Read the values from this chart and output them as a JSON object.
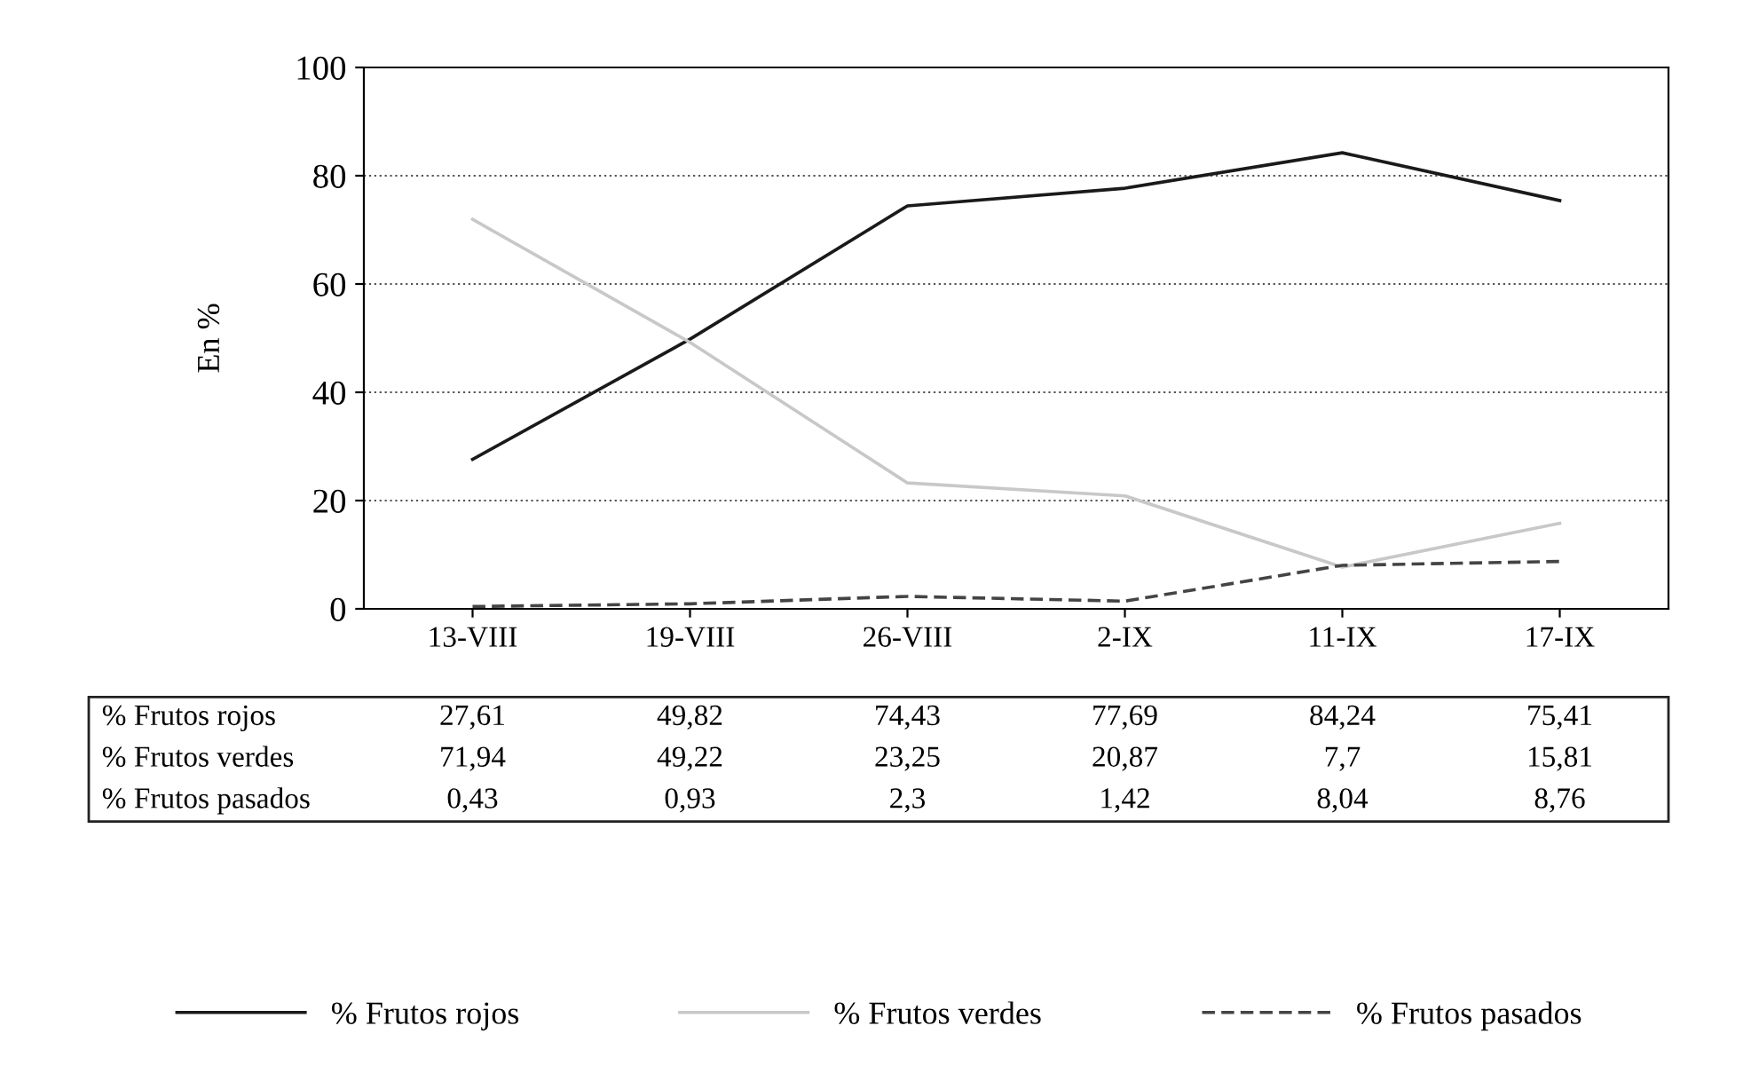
{
  "chart_data": {
    "type": "line",
    "ylabel": "En %",
    "categories": [
      "13-VIII",
      "19-VIII",
      "26-VIII",
      "2-IX",
      "11-IX",
      "17-IX"
    ],
    "series": [
      {
        "name": "% Frutos rojos",
        "color": "#1a1a1a",
        "line_style": "solid",
        "values": [
          27.61,
          49.82,
          74.43,
          77.69,
          84.24,
          75.41
        ],
        "value_labels": [
          "27,61",
          "49,82",
          "74,43",
          "77,69",
          "84,24",
          "75,41"
        ]
      },
      {
        "name": "% Frutos verdes",
        "color": "#c8c8c8",
        "line_style": "solid",
        "values": [
          71.94,
          49.22,
          23.25,
          20.87,
          7.7,
          15.81
        ],
        "value_labels": [
          "71,94",
          "49,22",
          "23,25",
          "20,87",
          "7,7",
          "15,81"
        ]
      },
      {
        "name": "% Frutos pasados",
        "color": "#444444",
        "line_style": "dashed",
        "values": [
          0.43,
          0.93,
          2.3,
          1.42,
          8.04,
          8.76
        ],
        "value_labels": [
          "0,43",
          "0,93",
          "2,3",
          "1,42",
          "8,04",
          "8,76"
        ]
      }
    ],
    "ylim": [
      0,
      100
    ],
    "yticks": [
      0,
      20,
      40,
      60,
      80,
      100
    ],
    "grid": "y",
    "legend": "bottom",
    "marker": "none"
  }
}
